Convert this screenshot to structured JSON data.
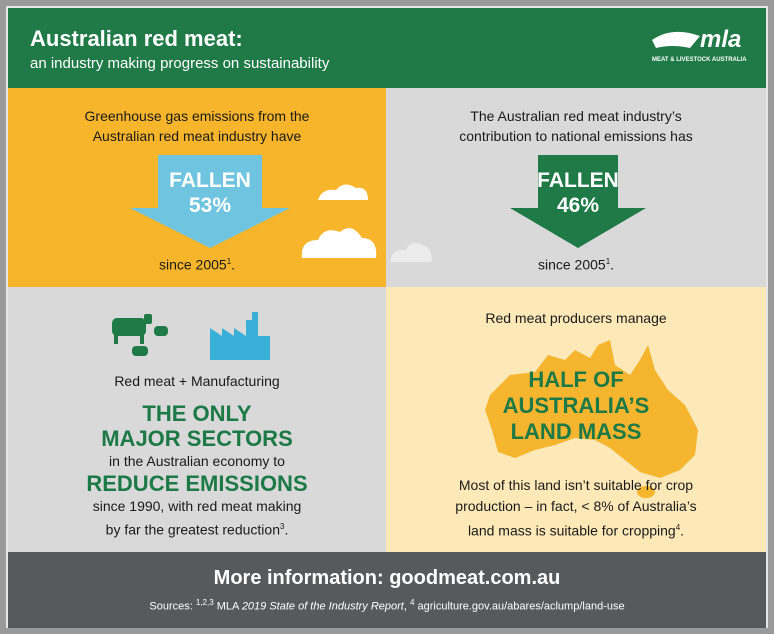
{
  "header": {
    "title": "Australian red meat:",
    "subtitle": "an industry making progress on sustainability",
    "logo": "mla",
    "logo_tagline": "MEAT & LIVESTOCK AUSTRALIA"
  },
  "panels": [
    {
      "intro": [
        "Greenhouse gas emissions from the",
        "Australian red meat industry have"
      ],
      "arrow_label": "FALLEN",
      "arrow_value": "53%",
      "since": {
        "text": "since 2005",
        "sup": "1",
        "end": "."
      }
    },
    {
      "intro": [
        "The Australian red meat industry’s",
        "contribution to national emissions has"
      ],
      "arrow_label": "FALLEN",
      "arrow_value": "46%",
      "since": {
        "text": "since 2005",
        "sup": "1",
        "end": "."
      }
    }
  ],
  "sectors": {
    "caption": "Red meat + Manufacturing",
    "headline": [
      "THE ONLY",
      "MAJOR SECTORS"
    ],
    "line1": "in the Australian economy to",
    "headline2": "REDUCE EMISSIONS",
    "line2": "since 1990, with red meat making",
    "line3": {
      "text": "by far the greatest reduction",
      "sup": "3",
      "end": "."
    }
  },
  "land": {
    "intro": "Red meat producers manage",
    "headline": [
      "HALF OF",
      "AUSTRALIA’S",
      "LAND MASS"
    ],
    "body": [
      "Most of this land isn’t suitable for crop",
      "production – in fact, < 8% of Australia’s"
    ],
    "body_last": {
      "text": "land mass is suitable for cropping",
      "sup": "4",
      "end": "."
    }
  },
  "footer": {
    "more": "More information: goodmeat.com.au",
    "sources": {
      "label": "Sources:",
      "sup1": "1,2,3",
      "org": "MLA",
      "report": "2019 State of the Industry Report",
      "sep": ",",
      "sup2": "4",
      "url": "agriculture.gov.au/abares/aclump/land-use"
    }
  }
}
